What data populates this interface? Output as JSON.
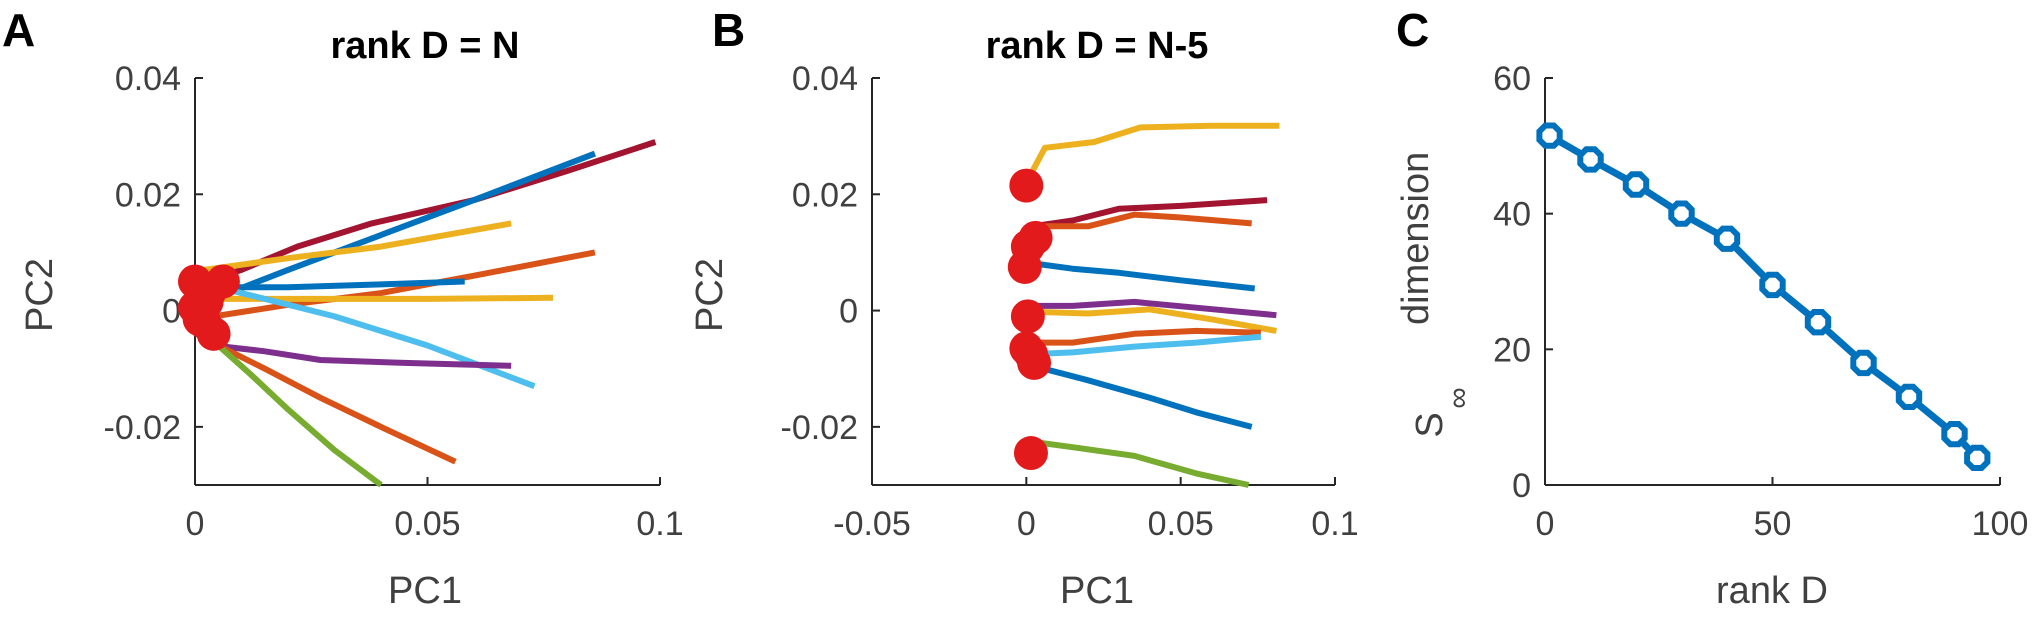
{
  "chart_data": [
    {
      "panel": "A",
      "type": "line",
      "title": "rank D = N",
      "xlabel": "PC1",
      "ylabel": "PC2",
      "xlim": [
        0,
        0.1
      ],
      "ylim": [
        -0.03,
        0.04
      ],
      "xticks": [
        0,
        0.05,
        0.1
      ],
      "xtick_labels": [
        "0",
        "0.05",
        "0.1"
      ],
      "yticks": [
        -0.02,
        0,
        0.02,
        0.04
      ],
      "ytick_labels": [
        "-0.02",
        "0",
        "0.02",
        "0.04"
      ],
      "series": [
        {
          "color": "#A2142F",
          "x": [
            0.002,
            0.01,
            0.022,
            0.038,
            0.06,
            0.08,
            0.099
          ],
          "y": [
            0.005,
            0.007,
            0.011,
            0.015,
            0.019,
            0.024,
            0.029
          ]
        },
        {
          "color": "#0072BD",
          "x": [
            0.004,
            0.02,
            0.04,
            0.06,
            0.086
          ],
          "y": [
            0.002,
            0.007,
            0.013,
            0.019,
            0.027
          ]
        },
        {
          "color": "#EDB120",
          "x": [
            0.002,
            0.02,
            0.04,
            0.068
          ],
          "y": [
            0.007,
            0.009,
            0.011,
            0.015
          ]
        },
        {
          "color": "#D95319",
          "x": [
            0.004,
            0.02,
            0.04,
            0.06,
            0.086
          ],
          "y": [
            -0.001,
            0.001,
            0.003,
            0.006,
            0.01
          ]
        },
        {
          "color": "#0072BD",
          "x": [
            0.004,
            0.02,
            0.04,
            0.058
          ],
          "y": [
            0.004,
            0.004,
            0.0045,
            0.005
          ]
        },
        {
          "color": "#EDB120",
          "x": [
            0.004,
            0.03,
            0.05,
            0.077
          ],
          "y": [
            0.002,
            0.002,
            0.002,
            0.0022
          ]
        },
        {
          "color": "#4DBEEE",
          "x": [
            0.005,
            0.015,
            0.03,
            0.05,
            0.073
          ],
          "y": [
            0.004,
            0.002,
            -0.001,
            -0.006,
            -0.013
          ]
        },
        {
          "color": "#7E2F8E",
          "x": [
            0.004,
            0.015,
            0.027,
            0.045,
            0.068
          ],
          "y": [
            -0.006,
            -0.007,
            -0.0085,
            -0.009,
            -0.0095
          ]
        },
        {
          "color": "#D95319",
          "x": [
            0.005,
            0.015,
            0.027,
            0.04,
            0.056
          ],
          "y": [
            -0.006,
            -0.01,
            -0.015,
            -0.02,
            -0.026
          ]
        },
        {
          "color": "#77AC30",
          "x": [
            0.005,
            0.012,
            0.02,
            0.03,
            0.04
          ],
          "y": [
            -0.006,
            -0.011,
            -0.017,
            -0.024,
            -0.03
          ]
        }
      ],
      "markers": {
        "color": "#E31A1C",
        "x": [
          0.0,
          0.0025,
          0.006,
          0.0,
          0.002,
          0.004,
          0.001,
          0.003
        ],
        "y": [
          0.005,
          0.0015,
          0.005,
          0.0005,
          -0.002,
          -0.004,
          -0.0015,
          0.003
        ]
      }
    },
    {
      "panel": "B",
      "type": "line",
      "title": "rank D = N-5",
      "xlabel": "PC1",
      "ylabel": "PC2",
      "xlim": [
        -0.05,
        0.1
      ],
      "ylim": [
        -0.03,
        0.04
      ],
      "xticks": [
        -0.05,
        0,
        0.05,
        0.1
      ],
      "xtick_labels": [
        "-0.05",
        "0",
        "0.05",
        "0.1"
      ],
      "yticks": [
        -0.02,
        0,
        0.02,
        0.04
      ],
      "ytick_labels": [
        "-0.02",
        "0",
        "0.02",
        "0.04"
      ],
      "series": [
        {
          "color": "#EDB120",
          "x": [
            0.0,
            0.006,
            0.022,
            0.037,
            0.06,
            0.082
          ],
          "y": [
            0.022,
            0.028,
            0.029,
            0.0315,
            0.0318,
            0.0318
          ]
        },
        {
          "color": "#A2142F",
          "x": [
            0.002,
            0.015,
            0.03,
            0.05,
            0.078
          ],
          "y": [
            0.0145,
            0.0155,
            0.0175,
            0.018,
            0.019
          ]
        },
        {
          "color": "#D95319",
          "x": [
            0.002,
            0.02,
            0.035,
            0.05,
            0.073
          ],
          "y": [
            0.0145,
            0.0145,
            0.0165,
            0.016,
            0.015
          ]
        },
        {
          "color": "#0072BD",
          "x": [
            0.001,
            0.015,
            0.03,
            0.05,
            0.074
          ],
          "y": [
            0.0082,
            0.0072,
            0.0065,
            0.0052,
            0.0038
          ]
        },
        {
          "color": "#7E2F8E",
          "x": [
            0.002,
            0.015,
            0.035,
            0.055,
            0.081
          ],
          "y": [
            0.0008,
            0.0008,
            0.0015,
            0.0005,
            -0.0008
          ]
        },
        {
          "color": "#EDB120",
          "x": [
            0.002,
            0.02,
            0.04,
            0.06,
            0.081
          ],
          "y": [
            -0.0002,
            -0.0005,
            0.0002,
            -0.0015,
            -0.0035
          ]
        },
        {
          "color": "#D95319",
          "x": [
            0.002,
            0.015,
            0.035,
            0.055,
            0.076
          ],
          "y": [
            -0.0055,
            -0.0055,
            -0.004,
            -0.0035,
            -0.0038
          ]
        },
        {
          "color": "#4DBEEE",
          "x": [
            0.001,
            0.015,
            0.035,
            0.055,
            0.076
          ],
          "y": [
            -0.0075,
            -0.0072,
            -0.0062,
            -0.0055,
            -0.0045
          ]
        },
        {
          "color": "#0072BD",
          "x": [
            0.002,
            0.02,
            0.04,
            0.055,
            0.073
          ],
          "y": [
            -0.0095,
            -0.012,
            -0.015,
            -0.0175,
            -0.02
          ]
        },
        {
          "color": "#77AC30",
          "x": [
            0.001,
            0.015,
            0.035,
            0.055,
            0.072
          ],
          "y": [
            -0.0225,
            -0.0235,
            -0.025,
            -0.028,
            -0.03
          ]
        }
      ],
      "markers": {
        "color": "#E31A1C",
        "x": [
          0.0,
          0.0005,
          0.003,
          -0.0005,
          0.0005,
          0.0,
          0.0015,
          0.0025,
          0.0015
        ],
        "y": [
          0.0215,
          0.011,
          0.0125,
          0.0075,
          -0.001,
          -0.0065,
          -0.0075,
          -0.009,
          -0.0245
        ]
      }
    },
    {
      "panel": "C",
      "type": "line",
      "title": "",
      "xlabel": "rank D",
      "ylabel_main": "S",
      "ylabel_sub": "∞",
      "ylabel_rest": "dimension",
      "xlim": [
        0,
        100
      ],
      "ylim": [
        0,
        60
      ],
      "xticks": [
        0,
        50,
        100
      ],
      "xtick_labels": [
        "0",
        "50",
        "100"
      ],
      "yticks": [
        0,
        20,
        40,
        60
      ],
      "ytick_labels": [
        "0",
        "20",
        "40",
        "60"
      ],
      "series": [
        {
          "name": "S∞ dimension",
          "color": "#0072BD",
          "x": [
            1,
            10,
            20,
            30,
            40,
            50,
            60,
            70,
            80,
            90,
            95
          ],
          "y": [
            51.5,
            48,
            44.3,
            40,
            36.3,
            29.5,
            24,
            18,
            13,
            7.5,
            4
          ]
        }
      ]
    }
  ]
}
